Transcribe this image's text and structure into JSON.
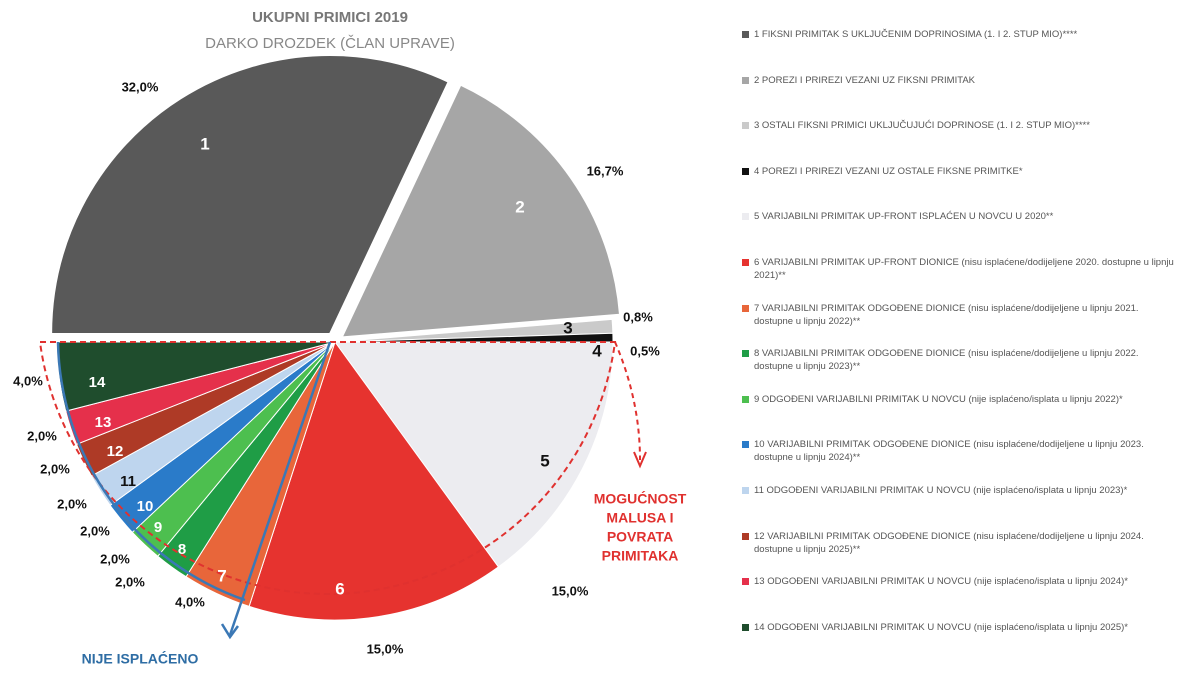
{
  "chart_data": {
    "type": "pie",
    "title": "UKUPNI PRIMICI 2019",
    "subtitle": "DARKO DROZDEK (ČLAN UPRAVE)",
    "categories": [
      "1 FIKSNI PRIMITAK S UKLJUČENIM DOPRINOSIMA (1. I 2. STUP MIO)****",
      "2 POREZI I PRIREZI VEZANI UZ FIKSNI PRIMITAK",
      "3 OSTALI FIKSNI PRIMICI UKLJUČUJUĆI DOPRINOSE (1. I 2. STUP MIO)****",
      "4 POREZI I PRIREZI VEZANI UZ OSTALE FIKSNE PRIMITKE*",
      "5 VARIJABILNI PRIMITAK UP-FRONT ISPLAĆEN U NOVCU U 2020**",
      "6 VARIJABILNI PRIMITAK UP-FRONT DIONICE (nisu isplaćene/dodijeljene 2020. dostupne u lipnju 2021)**",
      "7 VARIJABILNI PRIMITAK ODGOĐENE DIONICE (nisu isplaćene/dodijeljene u lipnju 2021. dostupne u lipnju 2022)**",
      "8 VARIJABILNI PRIMITAK ODGOĐENE DIONICE (nisu isplaćene/dodijeljene u lipnju 2022. dostupne u lipnju 2023)**",
      "9 ODGOĐENI VARIJABILNI PRIMITAK U NOVCU (nije isplaćeno/isplata u lipnju 2022)*",
      "10 VARIJABILNI PRIMITAK ODGOĐENE DIONICE (nisu isplaćene/dodijeljene u lipnju 2023. dostupne u lipnju 2024)**",
      "11 ODGOĐENI VARIJABILNI PRIMITAK U NOVCU (nije isplaćeno/isplata u lipnju 2023)*",
      "12 VARIJABILNI PRIMITAK ODGOĐENE DIONICE (nisu isplaćene/dodijeljene u lipnju 2024. dostupne u lipnju 2025)**",
      "13 ODGOĐENI VARIJABILNI PRIMITAK U NOVCU (nije isplaćeno/isplata u lipnju 2024)*",
      "14 ODGOĐENI VARIJABILNI PRIMITAK U NOVCU (nije isplaćeno/isplata u lipnju 2025)*"
    ],
    "slice_labels": [
      "1",
      "2",
      "3",
      "4",
      "5",
      "6",
      "7",
      "8",
      "9",
      "10",
      "11",
      "12",
      "13",
      "14"
    ],
    "values": [
      32.0,
      16.7,
      0.8,
      0.5,
      15.0,
      15.0,
      4.0,
      2.0,
      2.0,
      2.0,
      2.0,
      2.0,
      2.0,
      4.0
    ],
    "value_labels": [
      "32,0%",
      "16,7%",
      "0,8%",
      "0,5%",
      "15,0%",
      "15,0%",
      "4,0%",
      "2,0%",
      "2,0%",
      "2,0%",
      "2,0%",
      "2,0%",
      "2,0%",
      "4,0%"
    ],
    "colors": [
      "#595959",
      "#a6a6a6",
      "#cacaca",
      "#111111",
      "#ececf0",
      "#e6332f",
      "#e8663a",
      "#1f9d46",
      "#4dbf4f",
      "#2a7bc9",
      "#bed5ee",
      "#ae3a26",
      "#e5304b",
      "#1f4d2d"
    ],
    "annotations": [
      {
        "lines": [
          "MOGUĆNOST",
          "MALUSA I",
          "POVRATA",
          "PRIMITAKA"
        ],
        "color": "#e0312f"
      },
      {
        "lines": [
          "NIJE ISPLAĆENO"
        ],
        "color": "#2e6da4"
      }
    ]
  }
}
